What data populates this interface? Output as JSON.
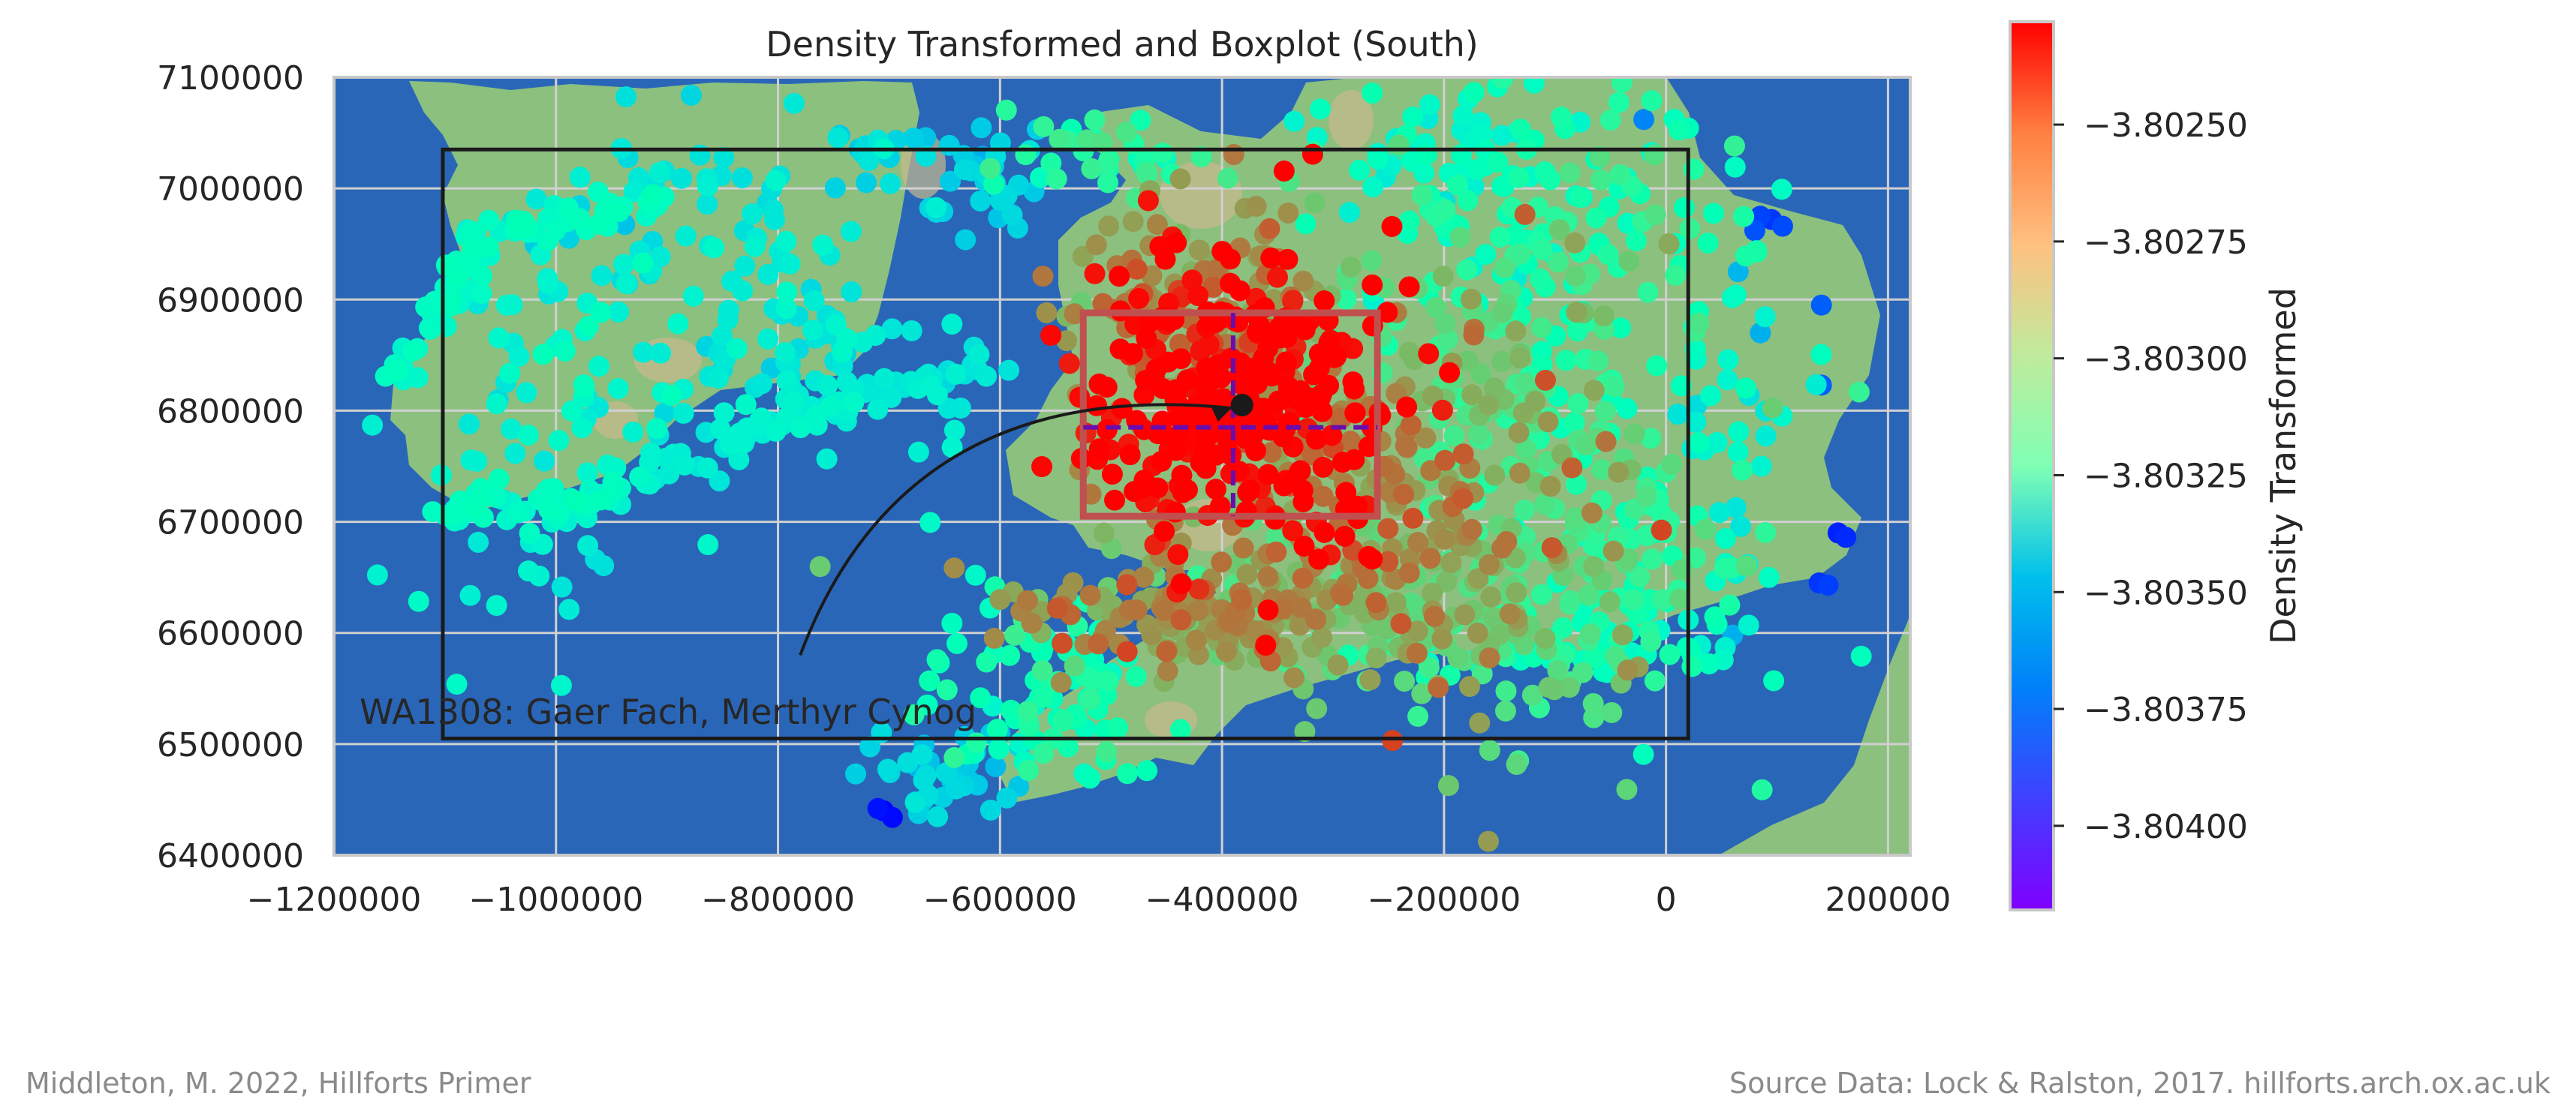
{
  "chart_data": {
    "type": "scatter",
    "title": "Density Transformed and Boxplot (South)",
    "xlabel": "",
    "ylabel": "",
    "xlim": [
      -1200000,
      220000
    ],
    "ylim": [
      6400000,
      7100000
    ],
    "x_ticks": [
      -1200000,
      -1000000,
      -800000,
      -600000,
      -400000,
      -200000,
      0,
      200000
    ],
    "x_tick_labels": [
      "−1200000",
      "−1000000",
      "−800000",
      "−600000",
      "−400000",
      "−200000",
      "0",
      "200000"
    ],
    "y_ticks": [
      6400000,
      6500000,
      6600000,
      6700000,
      6800000,
      6900000,
      7000000,
      7100000
    ],
    "y_tick_labels": [
      "6400000",
      "6500000",
      "6600000",
      "6700000",
      "6800000",
      "6900000",
      "7000000",
      "7100000"
    ],
    "grid": true,
    "colorbar": {
      "label": "Density Transformed",
      "range": [
        -3.80418,
        -3.80228
      ],
      "ticks": [
        -3.8025,
        -3.80275,
        -3.803,
        -3.80325,
        -3.8035,
        -3.80375,
        -3.804
      ],
      "tick_labels": [
        "−3.80250",
        "−3.80275",
        "−3.80300",
        "−3.80325",
        "−3.80350",
        "−3.80375",
        "−3.80400"
      ],
      "colormap": "rainbow"
    },
    "colors": {
      "sea": "#2a66b8",
      "frame": "#1a1a1a",
      "box": "#c0504f",
      "median": "#6a0dad"
    },
    "bounding_rectangle": {
      "x": [
        -1102000,
        20000
      ],
      "y": [
        6505000,
        7035000
      ]
    },
    "boxplot_x": {
      "q1": -525000,
      "median": -390000,
      "q3": -260000,
      "at_y": 6785000
    },
    "boxplot_y": {
      "q1": 6705000,
      "median": 6785000,
      "q3": 6888000,
      "at_x": -390000
    },
    "highlight_point": {
      "x": -382000,
      "y": 6805000,
      "label": "WA1308: Gaer Fach, Merthyr Cynog"
    },
    "annotation_text_anchor": {
      "x": -1177000,
      "y": 6518000
    },
    "clusters": [
      {
        "type": "gauss",
        "n": 300,
        "cx": -385000,
        "cy": 6810000,
        "sx": 65000,
        "sy": 70000,
        "val": -3.80226,
        "vs": 5e-05
      },
      {
        "type": "gauss",
        "n": 220,
        "cx": -300000,
        "cy": 6730000,
        "sx": 110000,
        "sy": 90000,
        "val": -3.80262,
        "vs": 8e-05
      },
      {
        "type": "gauss",
        "n": 120,
        "cx": -430000,
        "cy": 6620000,
        "sx": 90000,
        "sy": 25000,
        "val": -3.80266,
        "vs": 0.0001
      },
      {
        "type": "gauss",
        "n": 110,
        "cx": -420000,
        "cy": 6900000,
        "sx": 60000,
        "sy": 50000,
        "val": -3.80262,
        "vs": 8e-05
      },
      {
        "type": "gauss",
        "n": 200,
        "cx": -150000,
        "cy": 6760000,
        "sx": 90000,
        "sy": 130000,
        "val": -3.80295,
        "vs": 0.00012
      },
      {
        "type": "gauss",
        "n": 150,
        "cx": -240000,
        "cy": 6620000,
        "sx": 110000,
        "sy": 45000,
        "val": -3.80283,
        "vs": 0.0001
      },
      {
        "type": "gauss",
        "n": 90,
        "cx": -550000,
        "cy": 6550000,
        "sx": 60000,
        "sy": 45000,
        "val": -3.8032,
        "vs": 8e-05
      },
      {
        "type": "gauss",
        "n": 40,
        "cx": -640000,
        "cy": 6470000,
        "sx": 35000,
        "sy": 20000,
        "val": -3.8036,
        "vs": 5e-05
      },
      {
        "type": "gauss",
        "n": 130,
        "cx": -120000,
        "cy": 6960000,
        "sx": 100000,
        "sy": 60000,
        "val": -3.80318,
        "vs": 0.00012
      },
      {
        "type": "gauss",
        "n": 90,
        "cx": -50000,
        "cy": 6680000,
        "sx": 55000,
        "sy": 80000,
        "val": -3.80312,
        "vs": 0.0001
      },
      {
        "type": "gauss",
        "n": 50,
        "cx": -45000,
        "cy": 6590000,
        "sx": 60000,
        "sy": 15000,
        "val": -3.8033,
        "vs": 8e-05
      },
      {
        "type": "gauss",
        "n": 45,
        "cx": -200000,
        "cy": 7030000,
        "sx": 50000,
        "sy": 25000,
        "val": -3.80335,
        "vs": 8e-05
      },
      {
        "type": "gauss",
        "n": 35,
        "cx": -490000,
        "cy": 7030000,
        "sx": 45000,
        "sy": 20000,
        "val": -3.8031,
        "vs": 0.0001
      },
      {
        "type": "gauss",
        "n": 35,
        "cx": 60000,
        "cy": 6780000,
        "sx": 40000,
        "sy": 100000,
        "val": -3.8034,
        "vs": 8e-05
      },
      {
        "type": "gauss",
        "n": 100,
        "cx": -1000000,
        "cy": 6780000,
        "sx": 60000,
        "sy": 80000,
        "val": -3.8034,
        "vs": 6e-05
      },
      {
        "type": "gauss",
        "n": 80,
        "cx": -770000,
        "cy": 6850000,
        "sx": 70000,
        "sy": 60000,
        "val": -3.80347,
        "vs": 6e-05
      },
      {
        "type": "gauss",
        "n": 60,
        "cx": -880000,
        "cy": 6980000,
        "sx": 90000,
        "sy": 50000,
        "val": -3.8035,
        "vs": 5e-05
      },
      {
        "type": "gauss",
        "n": 25,
        "cx": -660000,
        "cy": 7020000,
        "sx": 40000,
        "sy": 30000,
        "val": -3.80358,
        "vs": 5e-05
      },
      {
        "type": "line",
        "n": 45,
        "x0": -1140000,
        "y0": 6830000,
        "x1": -1060000,
        "y1": 6960000,
        "val": -3.80336,
        "vs": 4e-05
      },
      {
        "type": "line",
        "n": 45,
        "x0": -1100000,
        "y0": 6710000,
        "x1": -940000,
        "y1": 6720000,
        "val": -3.80333,
        "vs": 4e-05
      },
      {
        "type": "line",
        "n": 40,
        "x0": -920000,
        "y0": 6740000,
        "x1": -760000,
        "y1": 6810000,
        "val": -3.80345,
        "vs": 4e-05
      },
      {
        "type": "line",
        "n": 40,
        "x0": -760000,
        "y0": 6810000,
        "x1": -600000,
        "y1": 6840000,
        "val": -3.80348,
        "vs": 4e-05
      },
      {
        "type": "line",
        "n": 35,
        "x0": -1060000,
        "y0": 6960000,
        "x1": -900000,
        "y1": 6990000,
        "val": -3.8033,
        "vs": 4e-05
      },
      {
        "type": "line",
        "n": 18,
        "x0": -590000,
        "y0": 6960000,
        "x1": -620000,
        "y1": 7050000,
        "val": -3.8036,
        "vs": 4e-05
      }
    ],
    "outliers": [
      {
        "x": 85000,
        "y": 6975000,
        "val": -3.80402
      },
      {
        "x": 95000,
        "y": 6972000,
        "val": -3.80405
      },
      {
        "x": 105000,
        "y": 6966000,
        "val": -3.804
      },
      {
        "x": 80000,
        "y": 6962000,
        "val": -3.80398
      },
      {
        "x": 140000,
        "y": 6895000,
        "val": -3.80395
      },
      {
        "x": 140000,
        "y": 6823000,
        "val": -3.80395
      },
      {
        "x": 155000,
        "y": 6690000,
        "val": -3.8041
      },
      {
        "x": 162000,
        "y": 6686000,
        "val": -3.80408
      },
      {
        "x": 138000,
        "y": 6645000,
        "val": -3.80405
      },
      {
        "x": 146000,
        "y": 6643000,
        "val": -3.80403
      },
      {
        "x": -705000,
        "y": 6440000,
        "val": -3.80418
      },
      {
        "x": -697000,
        "y": 6434000,
        "val": -3.80416
      },
      {
        "x": -710000,
        "y": 6442000,
        "val": -3.80414
      },
      {
        "x": -20000,
        "y": 7062000,
        "val": -3.80385
      },
      {
        "x": 65000,
        "y": 6925000,
        "val": -3.8037
      },
      {
        "x": 85000,
        "y": 6870000,
        "val": -3.80372
      },
      {
        "x": 60000,
        "y": 6598000,
        "val": -3.80372
      }
    ]
  },
  "footer": {
    "left": "Middleton, M. 2022, Hillforts Primer",
    "right": "Source Data: Lock & Ralston, 2017. hillforts.arch.ox.ac.uk"
  }
}
